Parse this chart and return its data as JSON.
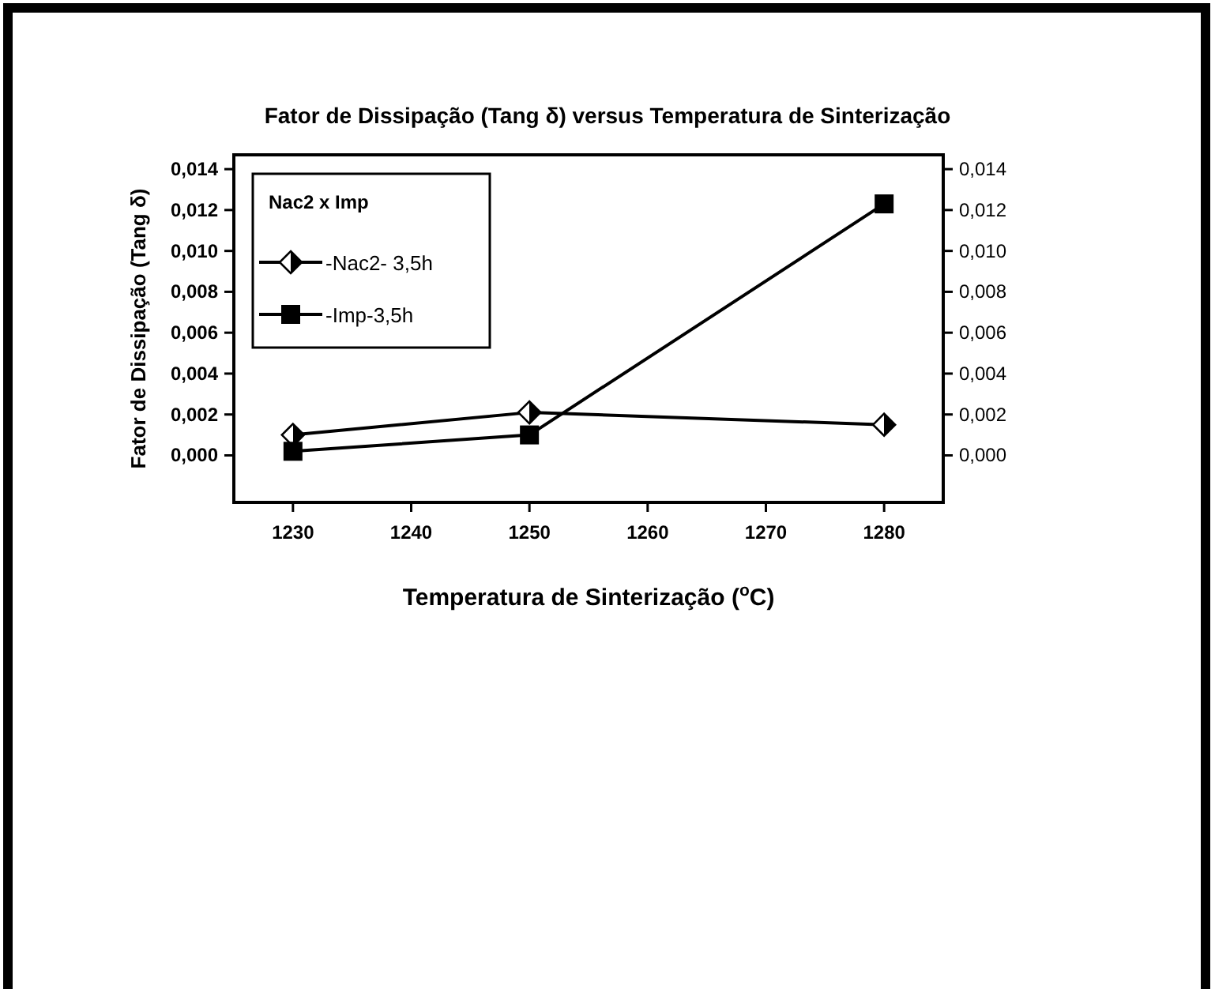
{
  "chart_data": {
    "type": "line",
    "title": "Fator de Dissipação (Tang δ) versus Temperatura de Sinterização",
    "xlabel": "Temperatura de Sinterização  ($^{o}$C)",
    "ylabel": "Fator de Dissipação (Tang δ)",
    "legend_title": "Nac2 x Imp",
    "legend": "top left",
    "grid": false,
    "x": [
      1230,
      1250,
      1280
    ],
    "xlim": [
      1225,
      1285
    ],
    "xticks": [
      1230,
      1240,
      1250,
      1260,
      1270,
      1280
    ],
    "ylim": [
      -0.0023,
      0.0147
    ],
    "yticks": [
      {
        "value": 0,
        "label": "0,000"
      },
      {
        "value": 0.002,
        "label": "0,002"
      },
      {
        "value": 0.004,
        "label": "0,004"
      },
      {
        "value": 0.006,
        "label": "0,006"
      },
      {
        "value": 0.008,
        "label": "0,008"
      },
      {
        "value": 0.01,
        "label": "0,010"
      },
      {
        "value": 0.012,
        "label": "0,012"
      },
      {
        "value": 0.014,
        "label": "0,014"
      }
    ],
    "y2lim": [
      -0.0023,
      0.0147
    ],
    "y2ticks": [
      {
        "value": 0,
        "label": "0,000"
      },
      {
        "value": 0.002,
        "label": "0,002"
      },
      {
        "value": 0.004,
        "label": "0,004"
      },
      {
        "value": 0.006,
        "label": "0,006"
      },
      {
        "value": 0.008,
        "label": "0,008"
      },
      {
        "value": 0.01,
        "label": "0,010"
      },
      {
        "value": 0.012,
        "label": "0,012"
      },
      {
        "value": 0.014,
        "label": "0,014"
      }
    ],
    "series": [
      {
        "name": "-Nac2- 3,5h",
        "color": "#000000",
        "marker": "diamond",
        "line_style": "solid",
        "values": [
          0.001,
          0.0021,
          0.0015
        ]
      },
      {
        "name": "-Imp-3,5h",
        "color": "#000000",
        "marker": "square",
        "line_style": "solid",
        "values": [
          0.0002,
          0.001,
          0.0123
        ]
      }
    ]
  }
}
